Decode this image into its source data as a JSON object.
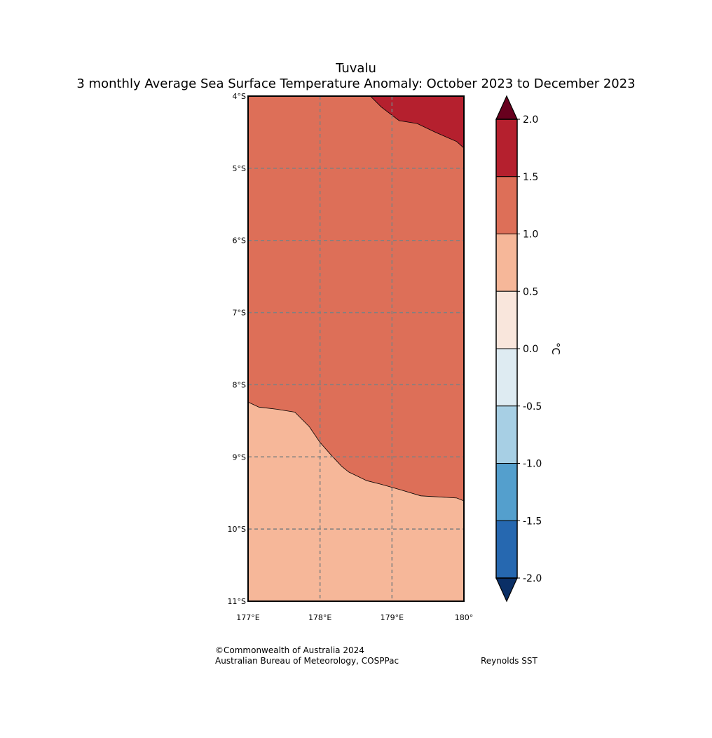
{
  "title": {
    "region": "Tuvalu",
    "subtitle": "3 monthly Average Sea Surface Temperature Anomaly: October 2023 to December 2023"
  },
  "map": {
    "lat_ticks": [
      "4°S",
      "5°S",
      "6°S",
      "7°S",
      "8°S",
      "9°S",
      "10°S",
      "11°S"
    ],
    "lon_ticks": [
      "177°E",
      "178°E",
      "179°E",
      "180°"
    ],
    "lon_range": [
      177,
      180
    ],
    "lat_range": [
      -11,
      -4
    ],
    "zones": [
      {
        "name": "anomaly 1.5 to 2.0",
        "color": "#b5202e"
      },
      {
        "name": "anomaly 1.0 to 1.5",
        "color": "#dd6f58"
      },
      {
        "name": "anomaly 0.5 to 1.0",
        "color": "#f6b799"
      }
    ],
    "boundaries": {
      "upper_contour": [
        [
          178.7,
          -4.0
        ],
        [
          178.85,
          -4.15
        ],
        [
          179.1,
          -4.34
        ],
        [
          179.35,
          -4.38
        ],
        [
          179.6,
          -4.5
        ],
        [
          179.9,
          -4.63
        ],
        [
          180.0,
          -4.72
        ]
      ],
      "lower_contour": [
        [
          177.0,
          -8.24
        ],
        [
          177.15,
          -8.31
        ],
        [
          177.4,
          -8.34
        ],
        [
          177.65,
          -8.38
        ],
        [
          177.85,
          -8.58
        ],
        [
          178.0,
          -8.8
        ],
        [
          178.15,
          -8.97
        ],
        [
          178.3,
          -9.13
        ],
        [
          178.4,
          -9.21
        ],
        [
          178.65,
          -9.33
        ],
        [
          178.85,
          -9.38
        ],
        [
          179.1,
          -9.45
        ],
        [
          179.4,
          -9.54
        ],
        [
          179.9,
          -9.57
        ],
        [
          180.0,
          -9.61
        ]
      ]
    }
  },
  "colorbar": {
    "unit": "°C",
    "tick_labels": [
      "2.0",
      "1.5",
      "1.0",
      "0.5",
      "0.0",
      "-0.5",
      "-1.0",
      "-1.5",
      "-2.0"
    ],
    "tick_values": [
      2.0,
      1.5,
      1.0,
      0.5,
      0.0,
      -0.5,
      -1.0,
      -1.5,
      -2.0
    ],
    "segments_top_to_bottom": [
      "#b5202e",
      "#dd6f58",
      "#f6b799",
      "#f9e6dc",
      "#deebf2",
      "#a7cfe4",
      "#549fcd",
      "#2668b0"
    ],
    "extend_max_color": "#68001e",
    "extend_min_color": "#0a2f66"
  },
  "footer": {
    "copyright": "©Commonwealth of Australia 2024",
    "organisation": "Australian Bureau of Meteorology, COSPPac",
    "source": "Reynolds SST"
  }
}
